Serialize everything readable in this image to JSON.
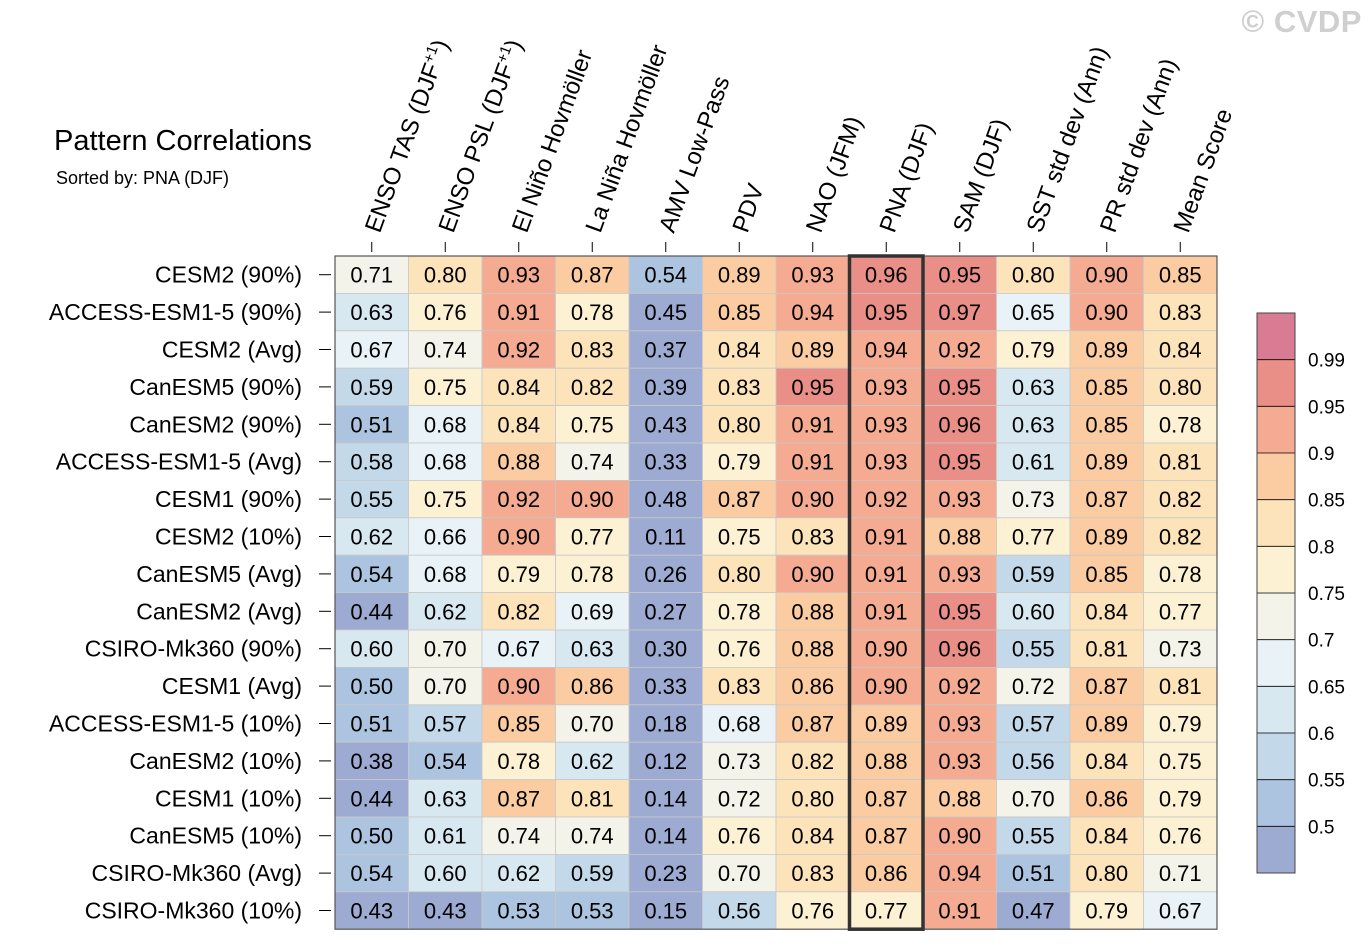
{
  "watermark": "© CVDP",
  "chart_data": {
    "type": "heatmap",
    "title": "Pattern Correlations",
    "subtitle": "Sorted by: PNA (DJF)",
    "columns": [
      "ENSO TAS (DJF+1)",
      "ENSO PSL (DJF+1)",
      "El Niño Hovmöller",
      "La Niña Hovmöller",
      "AMV Low-Pass",
      "PDV",
      "NAO (JFM)",
      "PNA (DJF)",
      "SAM (DJF)",
      "SST std dev (Ann)",
      "PR std dev (Ann)",
      "Mean Score"
    ],
    "highlighted_column": "PNA (DJF)",
    "rows": [
      {
        "name": "CESM2 (90%)",
        "values": [
          "0.71",
          "0.80",
          "0.93",
          "0.87",
          "0.54",
          "0.89",
          "0.93",
          "0.96",
          "0.95",
          "0.80",
          "0.90",
          "0.85"
        ]
      },
      {
        "name": "ACCESS-ESM1-5 (90%)",
        "values": [
          "0.63",
          "0.76",
          "0.91",
          "0.78",
          "0.45",
          "0.85",
          "0.94",
          "0.95",
          "0.97",
          "0.65",
          "0.90",
          "0.83"
        ]
      },
      {
        "name": "CESM2 (Avg)",
        "values": [
          "0.67",
          "0.74",
          "0.92",
          "0.83",
          "0.37",
          "0.84",
          "0.89",
          "0.94",
          "0.92",
          "0.79",
          "0.89",
          "0.84"
        ]
      },
      {
        "name": "CanESM5 (90%)",
        "values": [
          "0.59",
          "0.75",
          "0.84",
          "0.82",
          "0.39",
          "0.83",
          "0.95",
          "0.93",
          "0.95",
          "0.63",
          "0.85",
          "0.80"
        ]
      },
      {
        "name": "CanESM2 (90%)",
        "values": [
          "0.51",
          "0.68",
          "0.84",
          "0.75",
          "0.43",
          "0.80",
          "0.91",
          "0.93",
          "0.96",
          "0.63",
          "0.85",
          "0.78"
        ]
      },
      {
        "name": "ACCESS-ESM1-5 (Avg)",
        "values": [
          "0.58",
          "0.68",
          "0.88",
          "0.74",
          "0.33",
          "0.79",
          "0.91",
          "0.93",
          "0.95",
          "0.61",
          "0.89",
          "0.81"
        ]
      },
      {
        "name": "CESM1 (90%)",
        "values": [
          "0.55",
          "0.75",
          "0.92",
          "0.90",
          "0.48",
          "0.87",
          "0.90",
          "0.92",
          "0.93",
          "0.73",
          "0.87",
          "0.82"
        ]
      },
      {
        "name": "CESM2 (10%)",
        "values": [
          "0.62",
          "0.66",
          "0.90",
          "0.77",
          "0.11",
          "0.75",
          "0.83",
          "0.91",
          "0.88",
          "0.77",
          "0.89",
          "0.82"
        ]
      },
      {
        "name": "CanESM5 (Avg)",
        "values": [
          "0.54",
          "0.68",
          "0.79",
          "0.78",
          "0.26",
          "0.80",
          "0.90",
          "0.91",
          "0.93",
          "0.59",
          "0.85",
          "0.78"
        ]
      },
      {
        "name": "CanESM2 (Avg)",
        "values": [
          "0.44",
          "0.62",
          "0.82",
          "0.69",
          "0.27",
          "0.78",
          "0.88",
          "0.91",
          "0.95",
          "0.60",
          "0.84",
          "0.77"
        ]
      },
      {
        "name": "CSIRO-Mk360 (90%)",
        "values": [
          "0.60",
          "0.70",
          "0.67",
          "0.63",
          "0.30",
          "0.76",
          "0.88",
          "0.90",
          "0.96",
          "0.55",
          "0.81",
          "0.73"
        ]
      },
      {
        "name": "CESM1 (Avg)",
        "values": [
          "0.50",
          "0.70",
          "0.90",
          "0.86",
          "0.33",
          "0.83",
          "0.86",
          "0.90",
          "0.92",
          "0.72",
          "0.87",
          "0.81"
        ]
      },
      {
        "name": "ACCESS-ESM1-5 (10%)",
        "values": [
          "0.51",
          "0.57",
          "0.85",
          "0.70",
          "0.18",
          "0.68",
          "0.87",
          "0.89",
          "0.93",
          "0.57",
          "0.89",
          "0.79"
        ]
      },
      {
        "name": "CanESM2 (10%)",
        "values": [
          "0.38",
          "0.54",
          "0.78",
          "0.62",
          "0.12",
          "0.73",
          "0.82",
          "0.88",
          "0.93",
          "0.56",
          "0.84",
          "0.75"
        ]
      },
      {
        "name": "CESM1 (10%)",
        "values": [
          "0.44",
          "0.63",
          "0.87",
          "0.81",
          "0.14",
          "0.72",
          "0.80",
          "0.87",
          "0.88",
          "0.70",
          "0.86",
          "0.79"
        ]
      },
      {
        "name": "CanESM5 (10%)",
        "values": [
          "0.50",
          "0.61",
          "0.74",
          "0.74",
          "0.14",
          "0.76",
          "0.84",
          "0.87",
          "0.90",
          "0.55",
          "0.84",
          "0.76"
        ]
      },
      {
        "name": "CSIRO-Mk360 (Avg)",
        "values": [
          "0.54",
          "0.60",
          "0.62",
          "0.59",
          "0.23",
          "0.70",
          "0.83",
          "0.86",
          "0.94",
          "0.51",
          "0.80",
          "0.71"
        ]
      },
      {
        "name": "CSIRO-Mk360 (10%)",
        "values": [
          "0.43",
          "0.43",
          "0.53",
          "0.53",
          "0.15",
          "0.56",
          "0.76",
          "0.77",
          "0.91",
          "0.47",
          "0.79",
          "0.67"
        ]
      }
    ],
    "colorbar": {
      "labels": [
        "0.99",
        "0.95",
        "0.9",
        "0.85",
        "0.8",
        "0.75",
        "0.7",
        "0.65",
        "0.6",
        "0.55",
        "0.5"
      ],
      "thresholds": [
        0.5,
        0.55,
        0.6,
        0.65,
        0.7,
        0.75,
        0.8,
        0.85,
        0.9,
        0.95,
        0.99
      ],
      "colors": [
        "#9dabd2",
        "#adc4e0",
        "#c3d9e9",
        "#d8e8f1",
        "#e9f3f7",
        "#f3f3e9",
        "#fdf1d3",
        "#fde3b9",
        "#fbcca2",
        "#f4ab92",
        "#ea8f87",
        "#d97b92"
      ]
    }
  }
}
